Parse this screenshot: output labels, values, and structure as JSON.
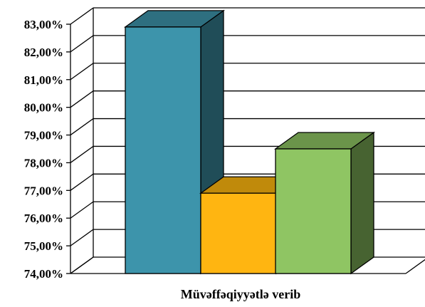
{
  "chart_data": {
    "type": "bar",
    "categories": [
      "Müvəffəqiyyətlə verib"
    ],
    "series": [
      {
        "values": [
          82.9
        ],
        "color": "#3d94ab",
        "top_color": "#2e6f80",
        "side_color": "#204d58"
      },
      {
        "values": [
          76.9
        ],
        "color": "#ffb511",
        "top_color": "#c08a0b",
        "side_color": "#7f5c06"
      },
      {
        "values": [
          78.5
        ],
        "color": "#8fc563",
        "top_color": "#6b944a",
        "side_color": "#476331"
      }
    ],
    "ylim": [
      74,
      83
    ],
    "yticks": [
      "74,00%",
      "75,00%",
      "76,00%",
      "77,00%",
      "78,00%",
      "79,00%",
      "80,00%",
      "81,00%",
      "82,00%",
      "83,00%"
    ],
    "xlabel": "Müvəffəqiyyətlə verib",
    "grid": true,
    "three_d": true
  }
}
